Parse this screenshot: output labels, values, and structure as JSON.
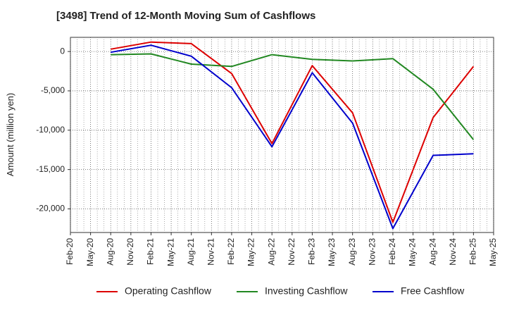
{
  "chart_data": {
    "type": "line",
    "title": "[3498]  Trend of 12-Month Moving Sum of Cashflows",
    "xlabel": "",
    "ylabel": "Amount (million yen)",
    "x_ticks": [
      "Feb-20",
      "May-20",
      "Aug-20",
      "Nov-20",
      "Feb-21",
      "May-21",
      "Aug-21",
      "Nov-21",
      "Feb-22",
      "May-22",
      "Aug-22",
      "Nov-22",
      "Feb-23",
      "May-23",
      "Aug-23",
      "Nov-23",
      "Feb-24",
      "May-24",
      "Aug-24",
      "Nov-24",
      "Feb-25",
      "May-25"
    ],
    "y_ticks": [
      0,
      -5000,
      -10000,
      -15000,
      -20000
    ],
    "y_tick_labels": [
      "0",
      "-5,000",
      "-10,000",
      "-15,000",
      "-20,000"
    ],
    "ylim": [
      -23000,
      1800
    ],
    "grid": true,
    "legend_position": "bottom",
    "series": [
      {
        "name": "Operating Cashflow",
        "color": "#dd0000",
        "points": [
          {
            "x": "Aug-20",
            "y": 300
          },
          {
            "x": "Feb-21",
            "y": 1200
          },
          {
            "x": "Aug-21",
            "y": 1000
          },
          {
            "x": "Feb-22",
            "y": -2800
          },
          {
            "x": "Aug-22",
            "y": -11700
          },
          {
            "x": "Feb-23",
            "y": -1800
          },
          {
            "x": "Aug-23",
            "y": -7800
          },
          {
            "x": "Feb-24",
            "y": -21700
          },
          {
            "x": "Aug-24",
            "y": -8400
          },
          {
            "x": "Feb-25",
            "y": -1900
          }
        ]
      },
      {
        "name": "Investing Cashflow",
        "color": "#228822",
        "points": [
          {
            "x": "Aug-20",
            "y": -400
          },
          {
            "x": "Feb-21",
            "y": -300
          },
          {
            "x": "Aug-21",
            "y": -1600
          },
          {
            "x": "Feb-22",
            "y": -1900
          },
          {
            "x": "Aug-22",
            "y": -400
          },
          {
            "x": "Feb-23",
            "y": -1000
          },
          {
            "x": "Aug-23",
            "y": -1200
          },
          {
            "x": "Feb-24",
            "y": -900
          },
          {
            "x": "Aug-24",
            "y": -4800
          },
          {
            "x": "Feb-25",
            "y": -11200
          }
        ]
      },
      {
        "name": "Free Cashflow",
        "color": "#0000cc",
        "points": [
          {
            "x": "Aug-20",
            "y": -100
          },
          {
            "x": "Feb-21",
            "y": 800
          },
          {
            "x": "Aug-21",
            "y": -600
          },
          {
            "x": "Feb-22",
            "y": -4600
          },
          {
            "x": "Aug-22",
            "y": -12100
          },
          {
            "x": "Feb-23",
            "y": -2700
          },
          {
            "x": "Aug-23",
            "y": -9100
          },
          {
            "x": "Feb-24",
            "y": -22500
          },
          {
            "x": "Aug-24",
            "y": -13200
          },
          {
            "x": "Feb-25",
            "y": -13000
          }
        ]
      }
    ]
  }
}
